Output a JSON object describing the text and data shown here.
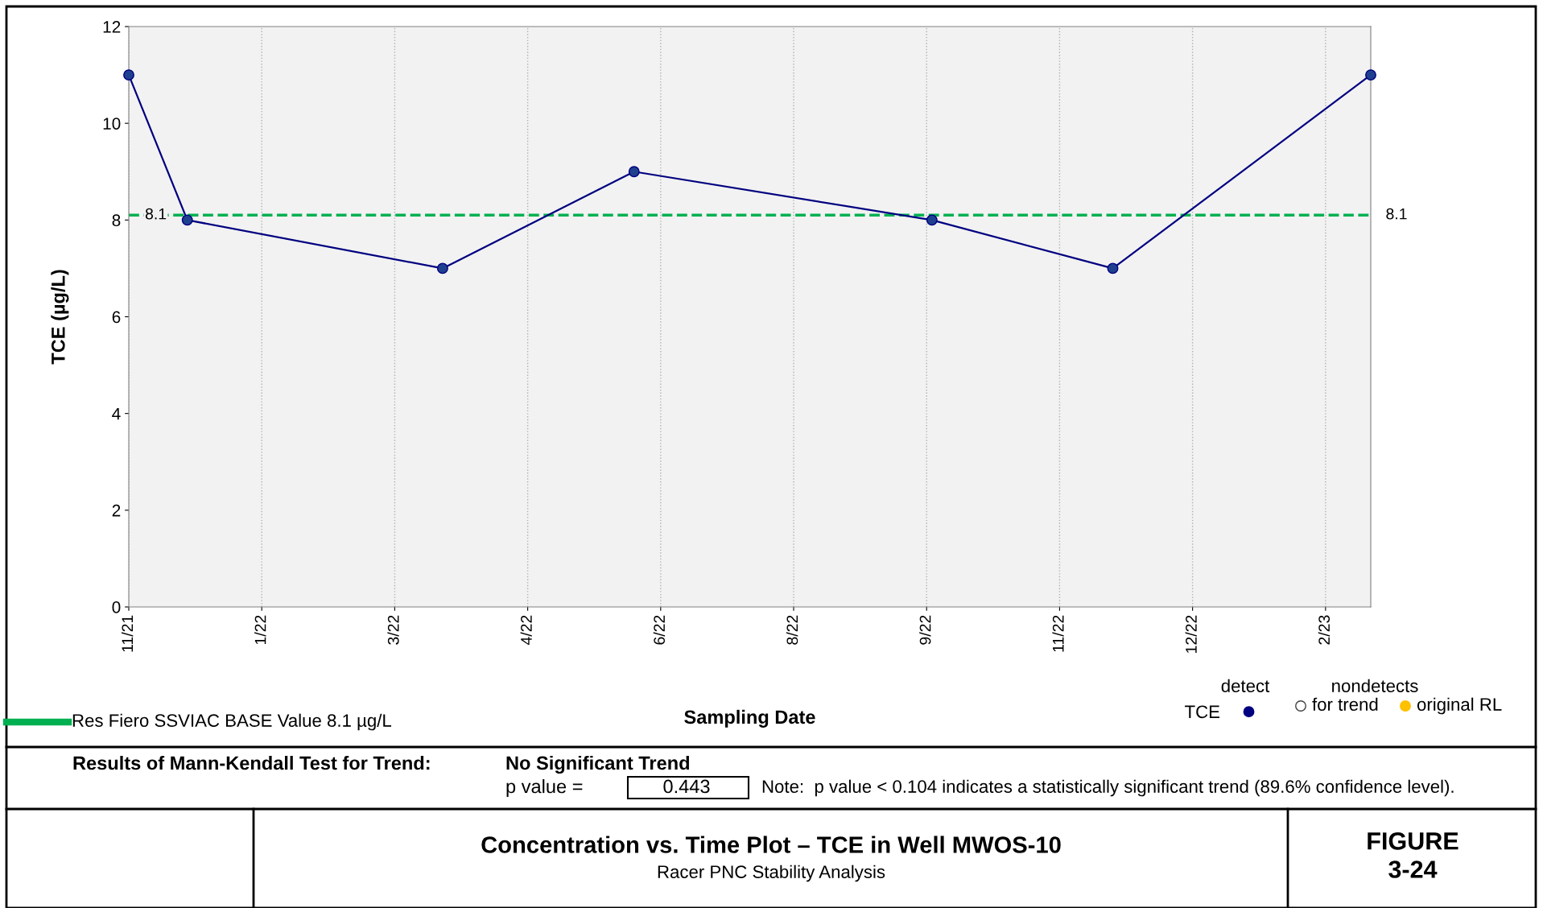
{
  "chart_data": {
    "type": "line",
    "title": "Concentration vs. Time Plot – TCE in Well MWOS-10",
    "subtitle": "Racer PNC Stability Analysis",
    "xlabel": "Sampling Date",
    "ylabel": "TCE (µg/L)",
    "x": [
      "2021-11-25",
      "2021-12-17",
      "2022-03-23",
      "2022-06-03",
      "2022-09-23",
      "2022-11-30",
      "2023-03-07"
    ],
    "series": [
      {
        "name": "TCE",
        "color": "#000080",
        "values": [
          11,
          8,
          7,
          9,
          8,
          7,
          11
        ]
      }
    ],
    "marker": "circle",
    "line_style": "solid",
    "grid": "x",
    "legend": "bottom right",
    "xlim": [
      "2021-11-25",
      "2023-03-07"
    ],
    "xticks": [
      {
        "value": "2021-11-25",
        "label": "11/21"
      },
      {
        "value": "2022-01-14",
        "label": "1/22"
      },
      {
        "value": "2022-03-05",
        "label": "3/22"
      },
      {
        "value": "2022-04-24",
        "label": "4/22"
      },
      {
        "value": "2022-06-13",
        "label": "6/22"
      },
      {
        "value": "2022-08-02",
        "label": "8/22"
      },
      {
        "value": "2022-09-21",
        "label": "9/22"
      },
      {
        "value": "2022-11-10",
        "label": "11/22"
      },
      {
        "value": "2022-12-30",
        "label": "12/22"
      },
      {
        "value": "2023-02-18",
        "label": "2/23"
      }
    ],
    "ylim": [
      0,
      12
    ],
    "yticks": [
      0,
      2,
      4,
      6,
      8,
      10,
      12
    ],
    "ref_lines": [
      {
        "axis": "y",
        "value": 8.1,
        "label": "8.1",
        "color": "#00b050",
        "line_style": "dashed"
      }
    ],
    "annotations": [
      "Res Fiero SSVIAC BASE Value 8.1 µg/L",
      "detect",
      "nondetects",
      "for trend",
      "original RL",
      "Results of Mann-Kendall Test for Trend:",
      "No Significant Trend",
      "p value =",
      "0.443",
      "Note:  p value < 0.104 indicates a statistically significant trend (89.6% confidence level).",
      "FIGURE\n3-24"
    ]
  }
}
